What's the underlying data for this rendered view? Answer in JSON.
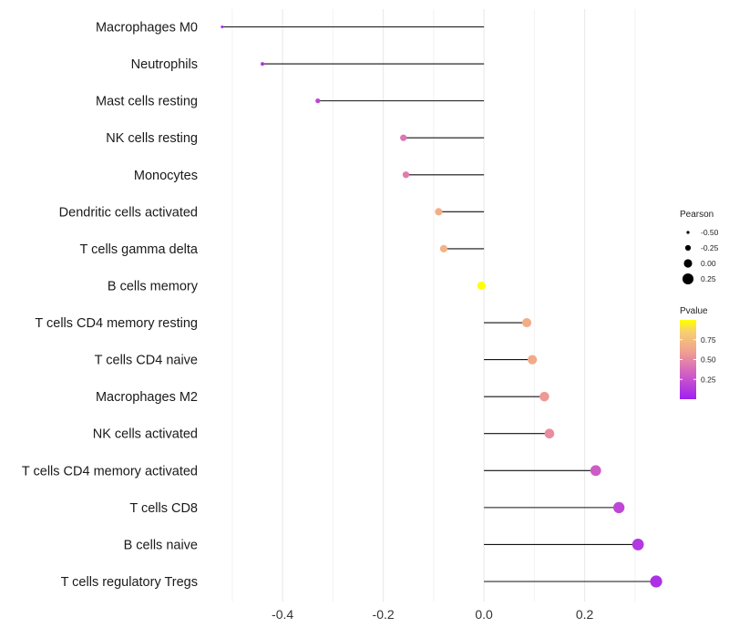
{
  "chart_data": {
    "type": "lollipop",
    "title": "",
    "xlabel": "",
    "ylabel": "",
    "xlim": [
      -0.545,
      0.36
    ],
    "x_ticks": [
      -0.4,
      -0.2,
      0.0,
      0.2
    ],
    "x_tick_labels": [
      "-0.4",
      "-0.2",
      "0.0",
      "0.2"
    ],
    "grid": true,
    "categories": [
      "Macrophages M0",
      "Neutrophils",
      "Mast cells resting",
      "NK cells resting",
      "Monocytes",
      "Dendritic cells activated",
      "T cells gamma delta",
      "B cells memory",
      "T cells CD4 memory resting",
      "T cells CD4 naive",
      "Macrophages M2",
      "NK cells activated",
      "T cells CD4 memory activated",
      "T cells CD8",
      "B cells naive",
      "T cells regulatory  Tregs"
    ],
    "pearson": [
      -0.52,
      -0.44,
      -0.33,
      -0.16,
      -0.155,
      -0.09,
      -0.08,
      -0.005,
      0.085,
      0.096,
      0.12,
      0.13,
      0.222,
      0.268,
      0.306,
      0.342
    ],
    "pvalue": [
      0.05,
      0.1,
      0.18,
      0.42,
      0.45,
      0.68,
      0.7,
      1.0,
      0.67,
      0.65,
      0.57,
      0.52,
      0.3,
      0.2,
      0.12,
      0.08
    ],
    "size_legend": {
      "title": "Pearson",
      "values": [
        -0.5,
        -0.25,
        0.0,
        0.25
      ],
      "labels": [
        "-0.50",
        "-0.25",
        "0.00",
        "0.25"
      ]
    },
    "color_legend": {
      "title": "Pvalue",
      "range": [
        0.0,
        1.0
      ],
      "ticks": [
        0.25,
        0.5,
        0.75
      ],
      "tick_labels": [
        "0.25",
        "0.50",
        "0.75"
      ],
      "colors": [
        "#a020f0",
        "#e07aa8",
        "#f5b07a",
        "#ffff00"
      ]
    },
    "legend_position": "right"
  }
}
